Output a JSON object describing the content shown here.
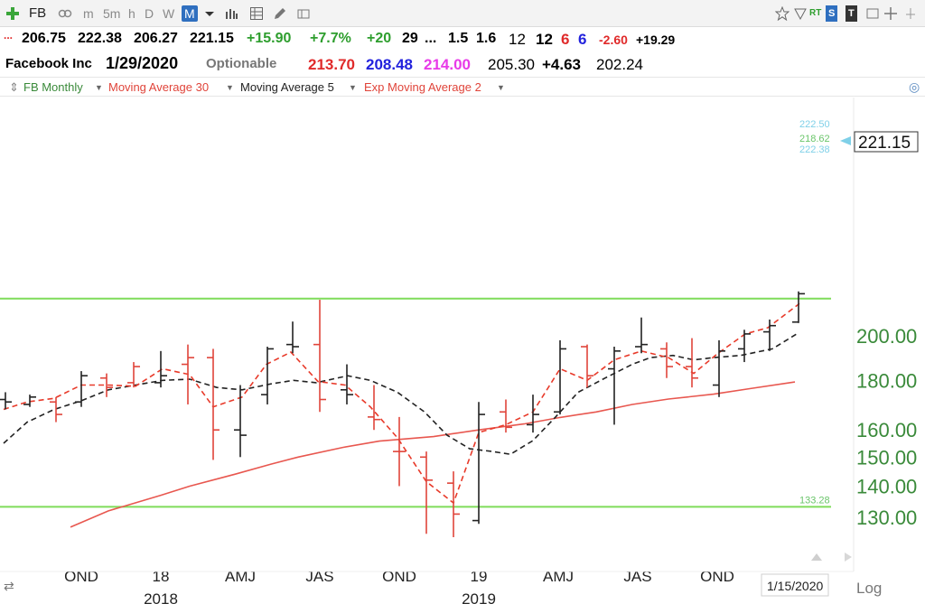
{
  "toolbar": {
    "symbol": "FB",
    "intervals": [
      "m",
      "5m",
      "h",
      "D",
      "W",
      "M"
    ],
    "active_interval": "M",
    "right_badges": [
      "RT",
      "S",
      "T"
    ]
  },
  "quote": {
    "open": "206.75",
    "high": "222.38",
    "low": "206.27",
    "close": "221.15",
    "change": "+15.90",
    "change_pct": "+7.7%",
    "f1": "+20",
    "f2": "29",
    "f3": "...",
    "f4": "1.5",
    "f5": "1.6",
    "f6": "12",
    "f7": "12",
    "f8": "6",
    "f9": "6",
    "f10": "-2.60",
    "f11": "+19.29",
    "name": "Facebook Inc",
    "date": "1/29/2020",
    "optionable": "Optionable",
    "v1": "213.70",
    "v2": "208.48",
    "v3": "214.00",
    "v4": "205.30",
    "v5": "+4.63",
    "v6": "202.24"
  },
  "studies": {
    "symbol_label": "FB Monthly",
    "ma30": "Moving Average 30",
    "ma5": "Moving Average 5",
    "ema2": "Exp Moving Average 2"
  },
  "chart_data": {
    "type": "ohlc",
    "scale": "log",
    "ylim": [
      120,
      228
    ],
    "y_ticks": [
      "130.00",
      "140.00",
      "150.00",
      "160.00",
      "180.00",
      "200.00"
    ],
    "last_price_label": "221.15",
    "x_labels": [
      {
        "label": "OND",
        "x": 90
      },
      {
        "label": "18",
        "x": 178
      },
      {
        "label": "AMJ",
        "x": 266
      },
      {
        "label": "JAS",
        "x": 354
      },
      {
        "label": "OND",
        "x": 442
      },
      {
        "label": "19",
        "x": 530
      },
      {
        "label": "AMJ",
        "x": 618
      },
      {
        "label": "JAS",
        "x": 706
      },
      {
        "label": "OND",
        "x": 794
      }
    ],
    "year_labels": [
      {
        "label": "2018",
        "x": 178
      },
      {
        "label": "2019",
        "x": 530
      }
    ],
    "date_box": "1/15/2020",
    "log_label": "Log",
    "horizontal_lines": [
      {
        "value": 218.62,
        "color": "#7fdc5a"
      },
      {
        "value": 133.28,
        "color": "#7fdc5a"
      }
    ],
    "line_labels": [
      {
        "text": "222.50",
        "value": 222.5,
        "color": "cyan"
      },
      {
        "text": "218.62",
        "value": 218.62,
        "color": "green"
      },
      {
        "text": "222.38",
        "value": 222.38,
        "color": "cyan"
      },
      {
        "text": "133.28",
        "value": 133.28,
        "color": "green"
      }
    ],
    "bars": [
      {
        "date": "2017-09",
        "open": 172,
        "high": 175,
        "low": 168,
        "close": 171,
        "color": "black"
      },
      {
        "date": "2017-10",
        "open": 170,
        "high": 174,
        "low": 169,
        "close": 173,
        "color": "black"
      },
      {
        "date": "2017-11",
        "open": 171,
        "high": 173,
        "low": 163,
        "close": 166,
        "color": "red"
      },
      {
        "date": "2017-12",
        "open": 171,
        "high": 184,
        "low": 169,
        "close": 182,
        "color": "black"
      },
      {
        "date": "2017-12b",
        "open": 181,
        "high": 183,
        "low": 173,
        "close": 177,
        "color": "red"
      },
      {
        "date": "2018-01",
        "open": 179,
        "high": 188,
        "low": 177,
        "close": 186,
        "color": "red"
      },
      {
        "date": "2018-02",
        "open": 179,
        "high": 193,
        "low": 177,
        "close": 182,
        "color": "black"
      },
      {
        "date": "2018-03",
        "open": 187,
        "high": 196,
        "low": 170,
        "close": 190,
        "color": "red"
      },
      {
        "date": "2018-04",
        "open": 190,
        "high": 194,
        "low": 149,
        "close": 160,
        "color": "red"
      },
      {
        "date": "2018-05",
        "open": 160,
        "high": 178,
        "low": 150,
        "close": 158,
        "color": "black"
      },
      {
        "date": "2018-06",
        "open": 174,
        "high": 195,
        "low": 170,
        "close": 194,
        "color": "black"
      },
      {
        "date": "2018-07",
        "open": 196,
        "high": 207,
        "low": 192,
        "close": 195,
        "color": "black"
      },
      {
        "date": "2018-08",
        "open": 196,
        "high": 218,
        "low": 167,
        "close": 172,
        "color": "red"
      },
      {
        "date": "2018-09",
        "open": 176,
        "high": 187,
        "low": 170,
        "close": 174,
        "color": "black"
      },
      {
        "date": "2018-10",
        "open": 165,
        "high": 178,
        "low": 160,
        "close": 164,
        "color": "red"
      },
      {
        "date": "2018-11",
        "open": 152,
        "high": 165,
        "low": 140,
        "close": 152,
        "color": "red"
      },
      {
        "date": "2018-12",
        "open": 150,
        "high": 152,
        "low": 125,
        "close": 142,
        "color": "red"
      },
      {
        "date": "2019-01a",
        "open": 141,
        "high": 145,
        "low": 124,
        "close": 131,
        "color": "red"
      },
      {
        "date": "2019-01",
        "open": 129,
        "high": 171,
        "low": 128,
        "close": 166,
        "color": "black"
      },
      {
        "date": "2019-02",
        "open": 167,
        "high": 172,
        "low": 159,
        "close": 161,
        "color": "red"
      },
      {
        "date": "2019-03",
        "open": 162,
        "high": 174,
        "low": 159,
        "close": 166,
        "color": "black"
      },
      {
        "date": "2019-04",
        "open": 167,
        "high": 198,
        "low": 166,
        "close": 194,
        "color": "black"
      },
      {
        "date": "2019-05",
        "open": 195,
        "high": 196,
        "low": 177,
        "close": 182,
        "color": "red"
      },
      {
        "date": "2019-06",
        "open": 185,
        "high": 195,
        "low": 162,
        "close": 193,
        "color": "black"
      },
      {
        "date": "2019-07",
        "open": 195,
        "high": 209,
        "low": 192,
        "close": 196,
        "color": "black"
      },
      {
        "date": "2019-08",
        "open": 194,
        "high": 197,
        "low": 181,
        "close": 186,
        "color": "red"
      },
      {
        "date": "2019-09",
        "open": 186,
        "high": 199,
        "low": 177,
        "close": 181,
        "color": "red"
      },
      {
        "date": "2019-10",
        "open": 178,
        "high": 198,
        "low": 173,
        "close": 193,
        "color": "black"
      },
      {
        "date": "2019-11",
        "open": 194,
        "high": 203,
        "low": 188,
        "close": 201,
        "color": "black"
      },
      {
        "date": "2019-12",
        "open": 202,
        "high": 208,
        "low": 193,
        "close": 205,
        "color": "black"
      },
      {
        "date": "2020-01",
        "open": 206.75,
        "high": 222.38,
        "low": 206.27,
        "close": 221.15,
        "color": "black"
      }
    ],
    "series": [
      {
        "name": "Moving Average 30",
        "color": "#e8574f",
        "dash": "",
        "points": [
          [
            78,
            127
          ],
          [
            120,
            132
          ],
          [
            178,
            137
          ],
          [
            210,
            140
          ],
          [
            260,
            144
          ],
          [
            300,
            147.5
          ],
          [
            330,
            150
          ],
          [
            380,
            153.5
          ],
          [
            420,
            155.8
          ],
          [
            480,
            157.5
          ],
          [
            500,
            158.5
          ],
          [
            530,
            160
          ],
          [
            580,
            162.3
          ],
          [
            620,
            164.8
          ],
          [
            660,
            167
          ],
          [
            700,
            170
          ],
          [
            740,
            172.2
          ],
          [
            790,
            174.2
          ],
          [
            830,
            176.5
          ],
          [
            880,
            179.3
          ]
        ]
      },
      {
        "name": "Moving Average 5",
        "color": "#222222",
        "dash": "6,4",
        "points": [
          [
            4,
            155
          ],
          [
            30,
            163
          ],
          [
            60,
            168
          ],
          [
            90,
            171.5
          ],
          [
            120,
            176
          ],
          [
            150,
            178
          ],
          [
            180,
            180
          ],
          [
            210,
            180.5
          ],
          [
            240,
            177
          ],
          [
            268,
            176
          ],
          [
            300,
            178.5
          ],
          [
            325,
            180
          ],
          [
            350,
            179
          ],
          [
            385,
            182
          ],
          [
            410,
            180
          ],
          [
            440,
            175
          ],
          [
            470,
            167
          ],
          [
            495,
            158
          ],
          [
            520,
            153
          ],
          [
            545,
            152
          ],
          [
            565,
            151
          ],
          [
            590,
            156
          ],
          [
            615,
            165
          ],
          [
            640,
            175
          ],
          [
            670,
            181
          ],
          [
            700,
            187
          ],
          [
            720,
            190
          ],
          [
            745,
            191
          ],
          [
            768,
            189
          ],
          [
            790,
            190
          ],
          [
            820,
            191
          ],
          [
            855,
            194
          ],
          [
            882,
            201
          ]
        ]
      },
      {
        "name": "Exp Moving Average 2",
        "color": "#e83a2a",
        "dash": "6,4",
        "points": [
          [
            4,
            168
          ],
          [
            30,
            171
          ],
          [
            60,
            172.5
          ],
          [
            90,
            178
          ],
          [
            120,
            178
          ],
          [
            150,
            177.5
          ],
          [
            180,
            185
          ],
          [
            210,
            182.5
          ],
          [
            236,
            169
          ],
          [
            268,
            173
          ],
          [
            295,
            187
          ],
          [
            322,
            192.5
          ],
          [
            352,
            179.5
          ],
          [
            382,
            178
          ],
          [
            410,
            169
          ],
          [
            440,
            157
          ],
          [
            472,
            141.5
          ],
          [
            502,
            134.5
          ],
          [
            530,
            159
          ],
          [
            560,
            162
          ],
          [
            590,
            167
          ],
          [
            620,
            185
          ],
          [
            650,
            180
          ],
          [
            680,
            189
          ],
          [
            710,
            193
          ],
          [
            740,
            190
          ],
          [
            768,
            183
          ],
          [
            795,
            192
          ],
          [
            825,
            201
          ],
          [
            850,
            204
          ],
          [
            885,
            216
          ]
        ]
      }
    ]
  }
}
